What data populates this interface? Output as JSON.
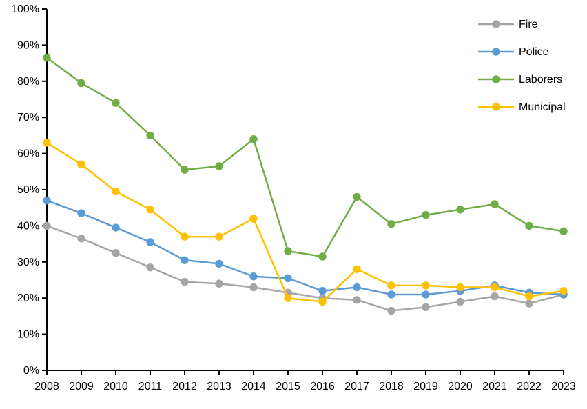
{
  "chart_data": {
    "type": "line",
    "title": "",
    "xlabel": "",
    "ylabel": "",
    "x_tick_labels": [
      "2008",
      "2009",
      "2010",
      "2011",
      "2012",
      "2013",
      "2014",
      "2015",
      "2016",
      "2017",
      "2018",
      "2019",
      "2020",
      "2021",
      "2022",
      "2023"
    ],
    "y_ticks": [
      0,
      10,
      20,
      30,
      40,
      50,
      60,
      70,
      80,
      90,
      100
    ],
    "y_tick_labels": [
      "0%",
      "10%",
      "20%",
      "30%",
      "40%",
      "50%",
      "60%",
      "70%",
      "80%",
      "90%",
      "100%"
    ],
    "ylim": [
      0,
      100
    ],
    "grid": false,
    "legend_position": "top-right",
    "axis_color": "#000000",
    "text_color": "#000000",
    "background_color": "#FFFFFF",
    "series": [
      {
        "name": "Fire",
        "color": "#A5A5A5",
        "values": [
          40,
          36.5,
          32.5,
          28.5,
          24.5,
          24,
          23,
          21.5,
          20,
          19.5,
          16.5,
          17.5,
          19,
          20.5,
          18.5,
          21
        ]
      },
      {
        "name": "Police",
        "color": "#5B9BD5",
        "values": [
          47,
          43.5,
          39.5,
          35.5,
          30.5,
          29.5,
          26,
          25.5,
          22,
          23,
          21,
          21,
          22,
          23.5,
          21.5,
          21
        ]
      },
      {
        "name": "Laborers",
        "color": "#70AD47",
        "values": [
          86.5,
          79.5,
          74,
          65,
          55.5,
          56.5,
          64,
          33,
          31.5,
          48,
          40.5,
          43,
          44.5,
          46,
          40,
          38.5
        ]
      },
      {
        "name": "Municipal",
        "color": "#FFC000",
        "values": [
          63,
          57,
          49.5,
          44.5,
          37,
          37,
          42,
          20,
          19,
          28,
          23.5,
          23.5,
          23,
          23,
          20.5,
          22
        ]
      }
    ]
  }
}
